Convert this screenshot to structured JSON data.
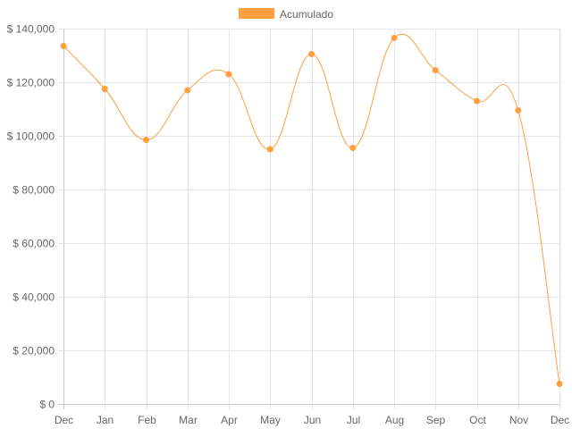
{
  "chart_data": {
    "type": "line",
    "categories": [
      "Dec",
      "Jan",
      "Feb",
      "Mar",
      "Apr",
      "May",
      "Jun",
      "Jul",
      "Aug",
      "Sep",
      "Oct",
      "Nov",
      "Dec"
    ],
    "series": [
      {
        "name": "Acumulado",
        "values": [
          133500,
          117500,
          98500,
          117000,
          123000,
          95000,
          130500,
          95500,
          136500,
          124500,
          113000,
          109500,
          7500
        ],
        "color": "#ff9f40"
      }
    ],
    "ylim": [
      0,
      140000
    ],
    "yticks": [
      0,
      20000,
      40000,
      60000,
      80000,
      100000,
      120000,
      140000
    ],
    "ytick_labels": [
      "$ 0",
      "$ 20,000",
      "$ 40,000",
      "$ 60,000",
      "$ 80,000",
      "$ 100,000",
      "$ 120,000",
      "$ 140,000"
    ],
    "grid": true,
    "legend_position": "top-center",
    "interpolation": "smooth"
  }
}
